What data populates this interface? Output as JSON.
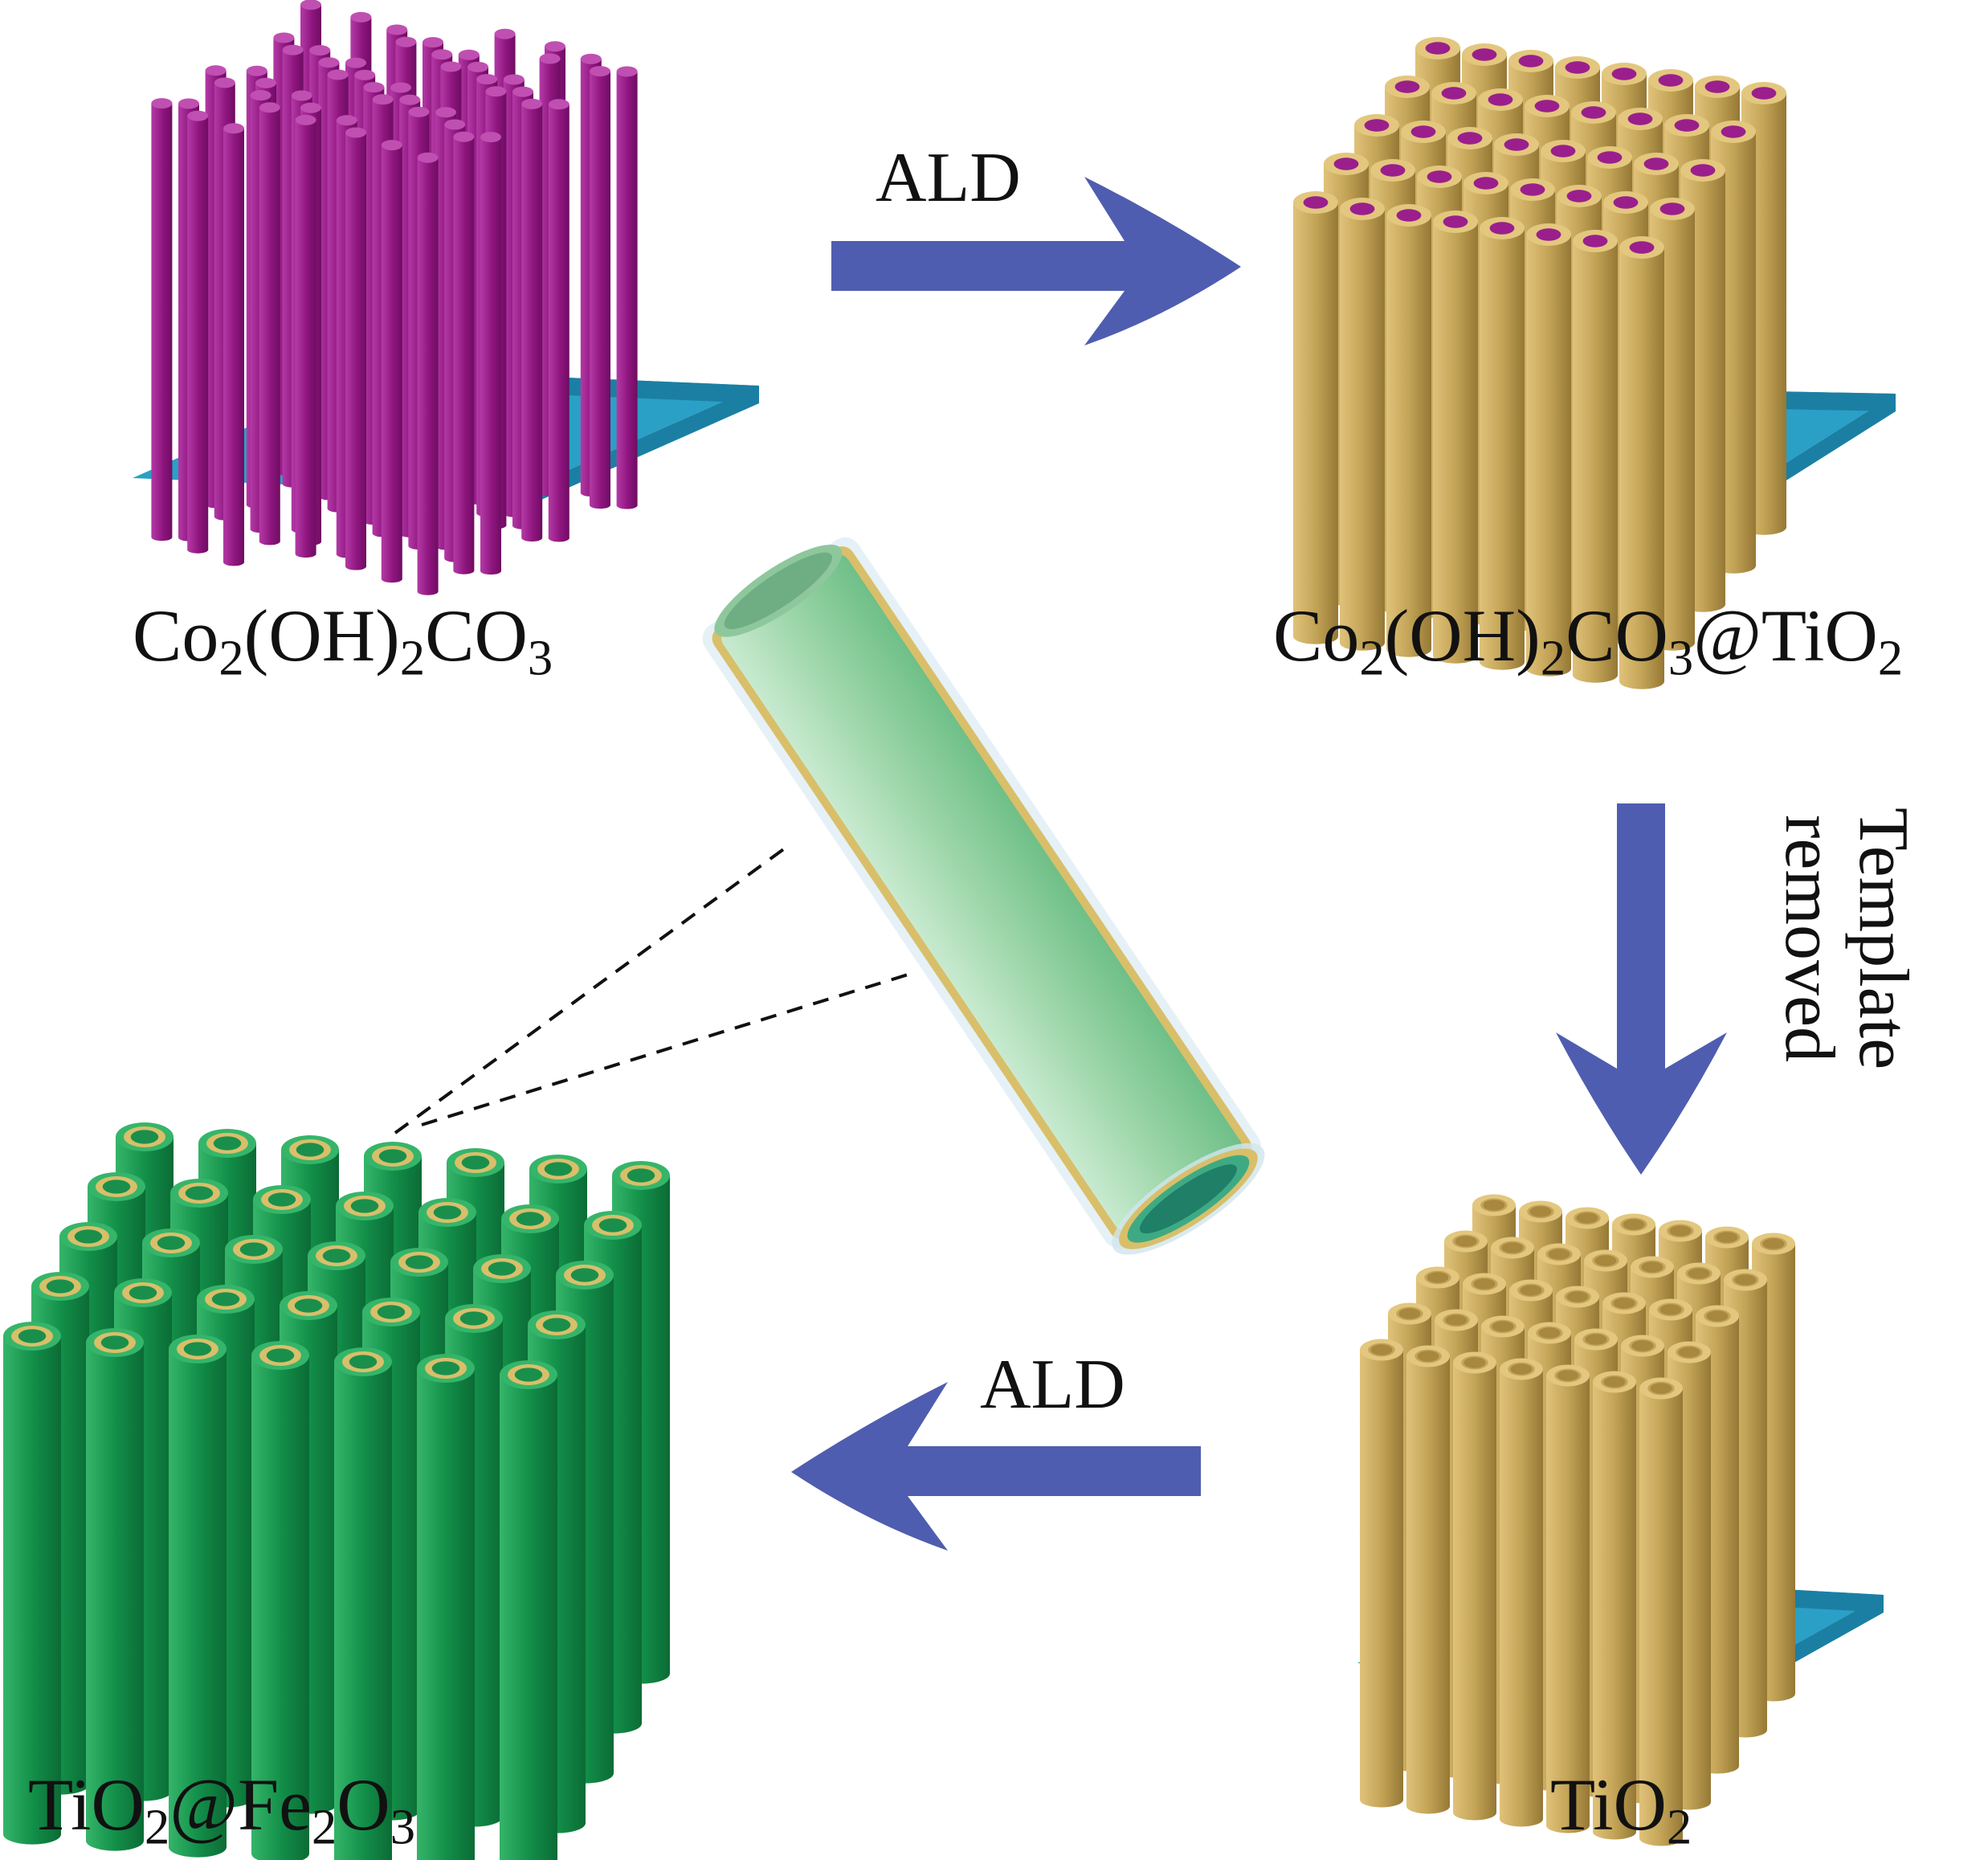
{
  "colors": {
    "substrate_top": "#2aa0c6",
    "substrate_side": "#1b7fa3",
    "rod_magenta": "#9b1a8a",
    "rod_gold": "#c4a55a",
    "rod_green": "#16924a",
    "hole_magenta": "#9a1f8c",
    "arrow": "#4f5db0",
    "tube_fill": "#9ed7a8",
    "tube_shell": "#d9bf6a"
  },
  "icons": [
    "arrow-right-icon",
    "arrow-down-icon",
    "arrow-left-icon",
    "nanotube-icon"
  ],
  "steps": {
    "co2_label": [
      "Co",
      "2",
      "(OH)",
      "2",
      "CO",
      "3"
    ],
    "co2tio2_label": [
      "Co",
      "2",
      "(OH)",
      "2",
      "CO",
      "3",
      "@TiO",
      "2"
    ],
    "tio2_label": [
      "TiO",
      "2"
    ],
    "tio2fe2o3_label": [
      "TiO",
      "2",
      "@Fe",
      "2",
      "O",
      "3"
    ]
  },
  "arrows": {
    "ald_top": "ALD",
    "ald_bottom": "ALD",
    "template_line1": "Template",
    "template_line2": "removed"
  }
}
